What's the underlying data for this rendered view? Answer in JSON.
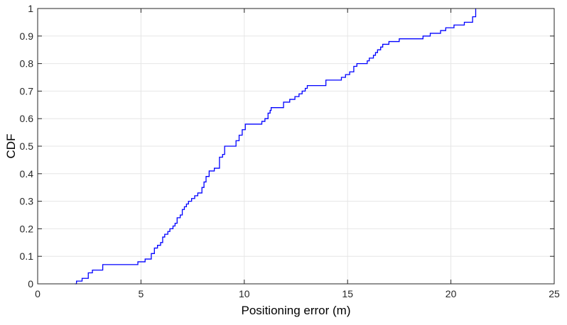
{
  "chart_data": {
    "type": "line",
    "title": "",
    "xlabel": "Positioning error (m)",
    "ylabel": "CDF",
    "xlim": [
      0,
      25
    ],
    "ylim": [
      0,
      1
    ],
    "x_ticks": [
      "0",
      "5",
      "10",
      "15",
      "20",
      "25"
    ],
    "y_ticks": [
      "0",
      "0.1",
      "0.2",
      "0.3",
      "0.4",
      "0.5",
      "0.6",
      "0.7",
      "0.8",
      "0.9",
      "1"
    ],
    "grid": true,
    "line_color": "#0000ff",
    "series": [
      {
        "step": "post",
        "x": [
          1.8,
          1.88,
          2.15,
          2.45,
          2.65,
          3.15,
          4.85,
          5.2,
          5.5,
          5.65,
          5.8,
          5.95,
          6.05,
          6.15,
          6.3,
          6.4,
          6.55,
          6.65,
          6.75,
          6.9,
          7.0,
          7.1,
          7.2,
          7.3,
          7.45,
          7.6,
          7.75,
          7.95,
          8.05,
          8.15,
          8.3,
          8.55,
          8.8,
          8.95,
          9.05,
          9.6,
          9.75,
          9.9,
          10.05,
          10.85,
          11.0,
          11.15,
          11.25,
          11.3,
          11.9,
          12.2,
          12.45,
          12.65,
          12.8,
          12.95,
          13.05,
          13.95,
          14.7,
          14.9,
          15.1,
          15.3,
          15.45,
          15.95,
          16.05,
          16.25,
          16.35,
          16.45,
          16.6,
          16.7,
          17.0,
          17.5,
          18.65,
          19.0,
          19.5,
          19.75,
          20.15,
          20.65,
          21.05,
          21.2
        ],
        "y": [
          0.0,
          0.01,
          0.02,
          0.04,
          0.05,
          0.07,
          0.08,
          0.09,
          0.11,
          0.13,
          0.14,
          0.15,
          0.17,
          0.18,
          0.19,
          0.2,
          0.21,
          0.22,
          0.24,
          0.25,
          0.27,
          0.28,
          0.29,
          0.3,
          0.31,
          0.32,
          0.33,
          0.35,
          0.37,
          0.39,
          0.41,
          0.42,
          0.46,
          0.47,
          0.5,
          0.52,
          0.54,
          0.56,
          0.58,
          0.59,
          0.6,
          0.62,
          0.63,
          0.64,
          0.66,
          0.67,
          0.68,
          0.69,
          0.7,
          0.71,
          0.72,
          0.74,
          0.75,
          0.76,
          0.77,
          0.79,
          0.8,
          0.81,
          0.82,
          0.83,
          0.84,
          0.85,
          0.86,
          0.87,
          0.88,
          0.89,
          0.9,
          0.91,
          0.92,
          0.93,
          0.94,
          0.95,
          0.97,
          1.0
        ]
      }
    ]
  }
}
